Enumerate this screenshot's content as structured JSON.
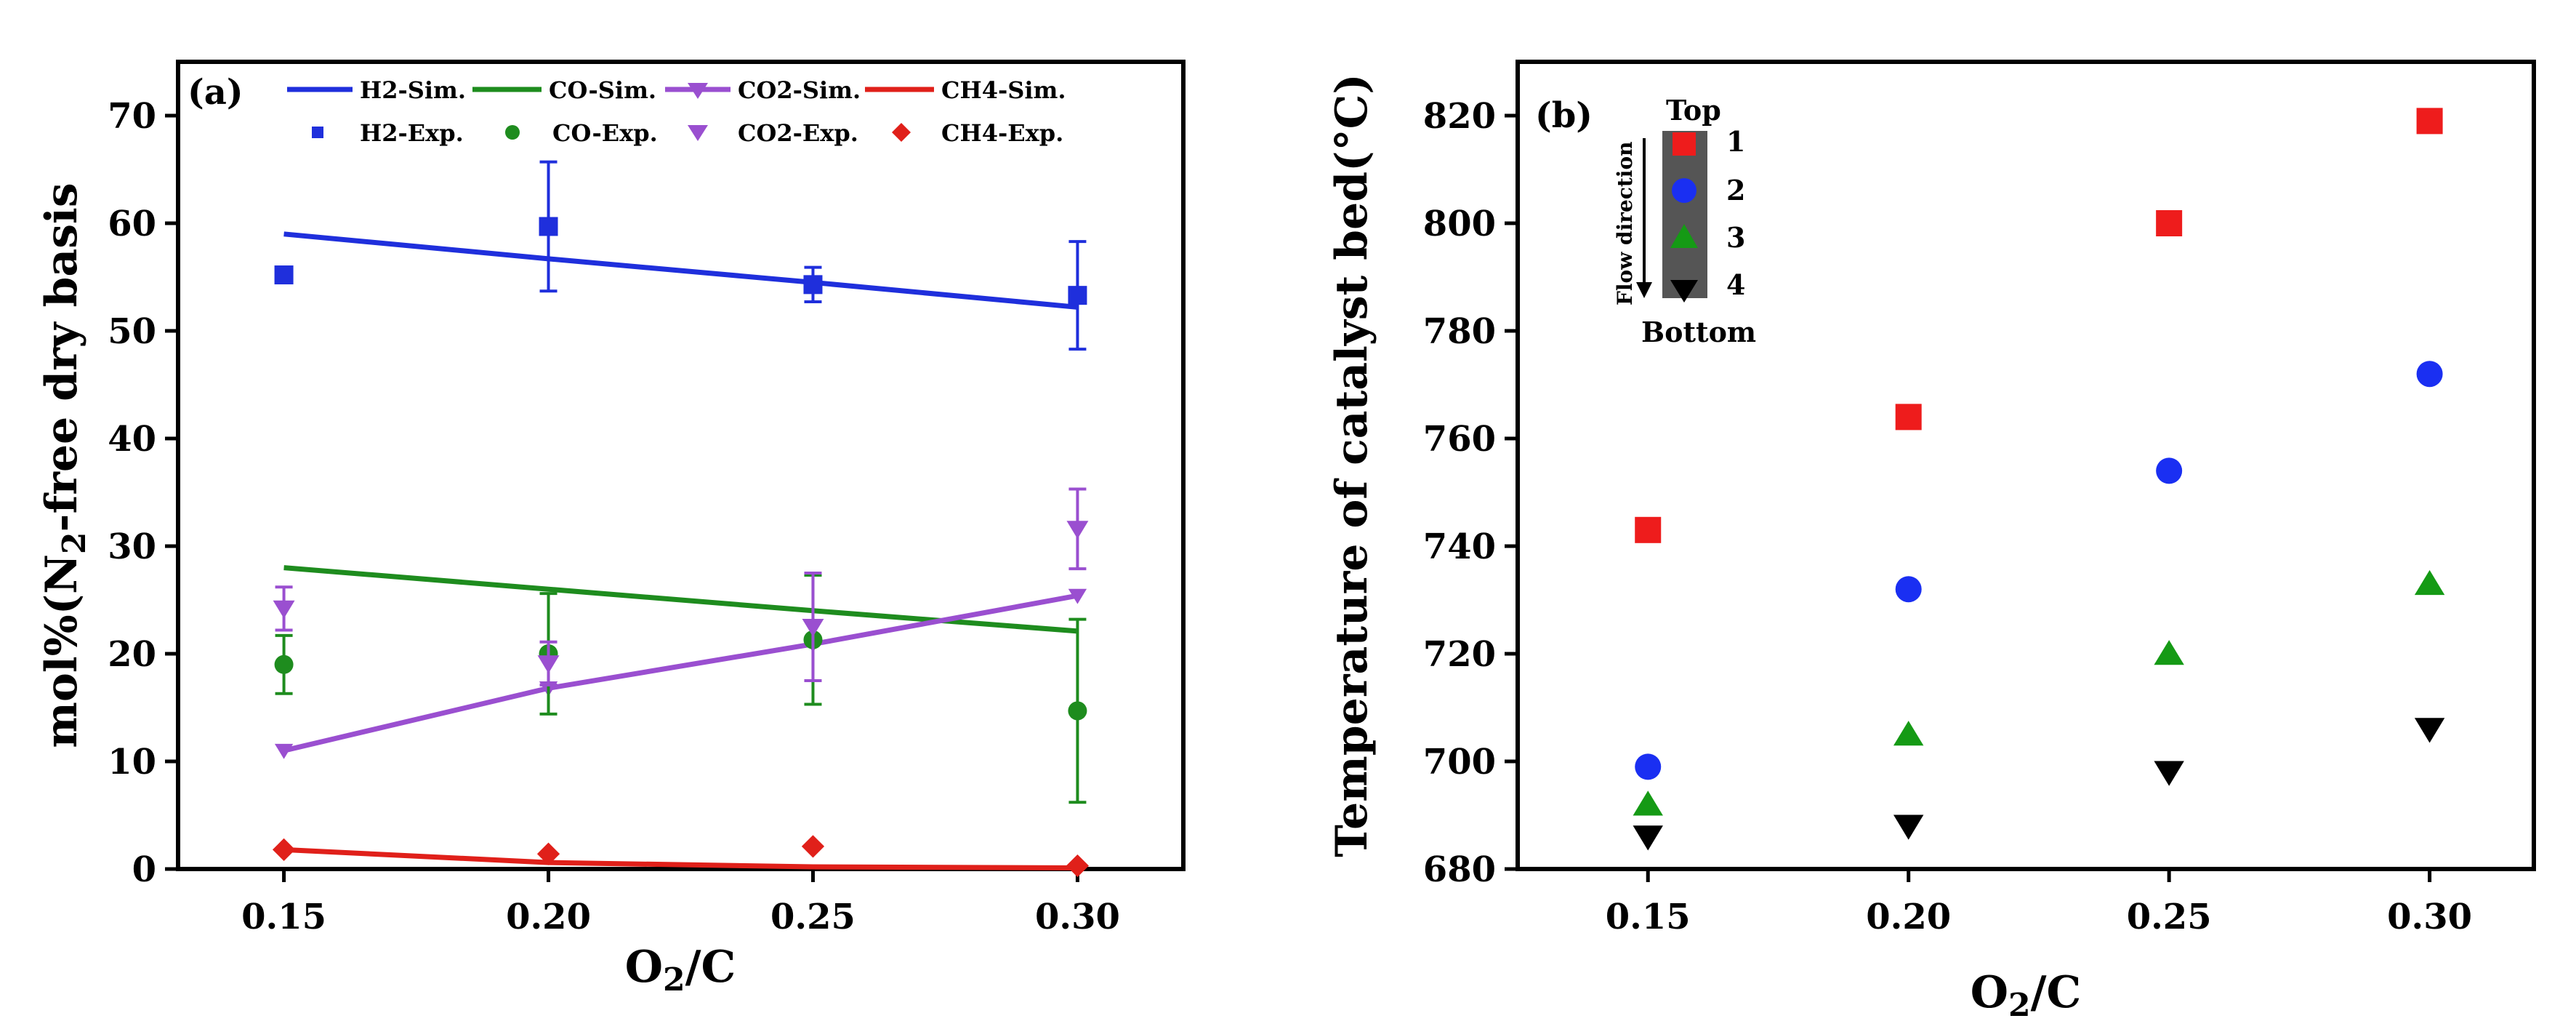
{
  "colors": {
    "H2": "#1f2fdc",
    "CO": "#1e8c1e",
    "CO2": "#9a4fd0",
    "CH4": "#e0201a",
    "pos1": "#ee1c1c",
    "pos2": "#1a2ff2",
    "pos3": "#159a15",
    "pos4": "#000000",
    "reactor": "#555555"
  },
  "chart_data": [
    {
      "panel": "(a)",
      "type": "line",
      "xlabel": "O2/C",
      "ylabel": "mol%(N2-free dry basis",
      "xlim": [
        0.13,
        0.32
      ],
      "ylim": [
        0,
        75
      ],
      "xticks": [
        0.15,
        0.2,
        0.25,
        0.3
      ],
      "xtick_labels": [
        "0.15",
        "0.20",
        "0.25",
        "0.30"
      ],
      "yticks": [
        0,
        10,
        20,
        30,
        40,
        50,
        60,
        70
      ],
      "ytick_labels": [
        "0",
        "10",
        "20",
        "30",
        "40",
        "50",
        "60",
        "70"
      ],
      "legend": {
        "placement": "top",
        "sim_labels": [
          "H2-Sim.",
          "CO-Sim.",
          "CO2-Sim.",
          "CH4-Sim."
        ],
        "exp_labels": [
          "H2-Exp.",
          "CO-Exp.",
          "CO2-Exp.",
          "CH4-Exp."
        ]
      },
      "series": [
        {
          "name": "H2-Sim.",
          "kind": "sim",
          "color_key": "H2",
          "marker": "none",
          "x": [
            0.15,
            0.2,
            0.25,
            0.3
          ],
          "y": [
            59.0,
            56.7,
            54.5,
            52.2
          ]
        },
        {
          "name": "CO-Sim.",
          "kind": "sim",
          "color_key": "CO",
          "marker": "none",
          "x": [
            0.15,
            0.2,
            0.25,
            0.3
          ],
          "y": [
            28.0,
            26.0,
            24.0,
            22.1
          ]
        },
        {
          "name": "CO2-Sim.",
          "kind": "sim",
          "color_key": "CO2",
          "marker": "triangle-down",
          "x": [
            0.15,
            0.2,
            0.25,
            0.3
          ],
          "y": [
            11.0,
            16.8,
            20.9,
            25.4
          ]
        },
        {
          "name": "CH4-Sim.",
          "kind": "sim",
          "color_key": "CH4",
          "marker": "none",
          "x": [
            0.15,
            0.2,
            0.25,
            0.3
          ],
          "y": [
            1.8,
            0.6,
            0.2,
            0.1
          ]
        },
        {
          "name": "H2-Exp.",
          "kind": "exp",
          "color_key": "H2",
          "marker": "square",
          "x": [
            0.15,
            0.2,
            0.25,
            0.3
          ],
          "y": [
            55.2,
            59.7,
            54.3,
            53.3
          ],
          "err": [
            0.6,
            6.0,
            1.6,
            5.0
          ]
        },
        {
          "name": "CO-Exp.",
          "kind": "exp",
          "color_key": "CO",
          "marker": "circle",
          "x": [
            0.15,
            0.2,
            0.25,
            0.3
          ],
          "y": [
            19.0,
            20.0,
            21.3,
            14.7
          ],
          "err": [
            2.7,
            5.6,
            6.0,
            8.5
          ]
        },
        {
          "name": "CO2-Exp.",
          "kind": "exp",
          "color_key": "CO2",
          "marker": "triangle-down",
          "x": [
            0.15,
            0.2,
            0.25,
            0.3
          ],
          "y": [
            24.2,
            19.1,
            22.5,
            31.6
          ],
          "err": [
            2.0,
            2.0,
            5.0,
            3.7
          ]
        },
        {
          "name": "CH4-Exp.",
          "kind": "exp",
          "color_key": "CH4",
          "marker": "diamond",
          "x": [
            0.15,
            0.2,
            0.25,
            0.3
          ],
          "y": [
            1.8,
            1.4,
            2.1,
            0.3
          ],
          "err": [
            0,
            0,
            0,
            0
          ]
        }
      ]
    },
    {
      "panel": "(b)",
      "type": "scatter",
      "xlabel": "O2/C",
      "ylabel": "Temperature of catalyst bed(°C)",
      "xlim": [
        0.125,
        0.32
      ],
      "ylim": [
        680,
        830
      ],
      "xticks": [
        0.15,
        0.2,
        0.25,
        0.3
      ],
      "xtick_labels": [
        "0.15",
        "0.20",
        "0.25",
        "0.30"
      ],
      "yticks": [
        680,
        700,
        720,
        740,
        760,
        780,
        800,
        820
      ],
      "ytick_labels": [
        "680",
        "700",
        "720",
        "740",
        "760",
        "780",
        "800",
        "820"
      ],
      "series": [
        {
          "name": "1",
          "color_key": "pos1",
          "marker": "square",
          "x": [
            0.15,
            0.2,
            0.25,
            0.3
          ],
          "y": [
            743,
            764,
            800,
            819
          ]
        },
        {
          "name": "2",
          "color_key": "pos2",
          "marker": "circle",
          "x": [
            0.15,
            0.2,
            0.25,
            0.3
          ],
          "y": [
            699,
            732,
            754,
            772
          ]
        },
        {
          "name": "3",
          "color_key": "pos3",
          "marker": "triangle-up",
          "x": [
            0.15,
            0.2,
            0.25,
            0.3
          ],
          "y": [
            692,
            705,
            720,
            733
          ]
        },
        {
          "name": "4",
          "color_key": "pos4",
          "marker": "triangle-down",
          "x": [
            0.15,
            0.2,
            0.25,
            0.3
          ],
          "y": [
            686,
            688,
            698,
            706
          ]
        }
      ],
      "inset": {
        "top_label": "Top",
        "bottom_label": "Bottom",
        "flow_label": "Flow direction",
        "position_labels": [
          "1",
          "2",
          "3",
          "4"
        ]
      }
    }
  ]
}
